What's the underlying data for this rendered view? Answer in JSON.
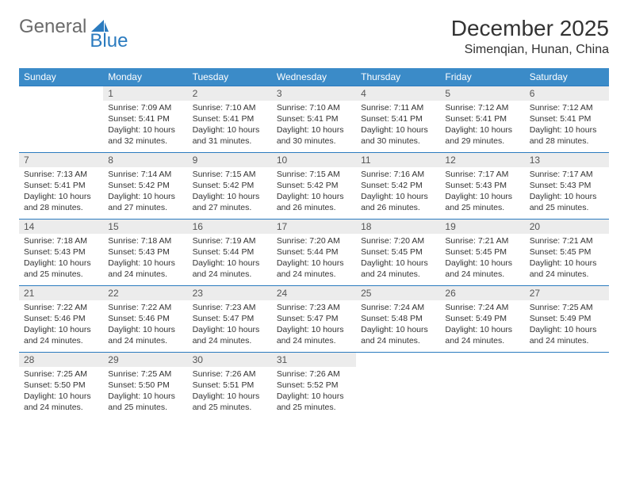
{
  "logo": {
    "word1": "General",
    "word2": "Blue",
    "word1_color": "#6b6b6b",
    "word2_color": "#2b7bbf",
    "icon_color": "#2b7bbf"
  },
  "title": "December 2025",
  "location": "Simenqian, Hunan, China",
  "header_bg": "#3b8bc8",
  "daynum_bg": "#ececec",
  "rule_color": "#2b7bbf",
  "day_headers": [
    "Sunday",
    "Monday",
    "Tuesday",
    "Wednesday",
    "Thursday",
    "Friday",
    "Saturday"
  ],
  "weeks": [
    [
      null,
      {
        "n": "1",
        "sr": "7:09 AM",
        "ss": "5:41 PM",
        "dl": "10 hours and 32 minutes."
      },
      {
        "n": "2",
        "sr": "7:10 AM",
        "ss": "5:41 PM",
        "dl": "10 hours and 31 minutes."
      },
      {
        "n": "3",
        "sr": "7:10 AM",
        "ss": "5:41 PM",
        "dl": "10 hours and 30 minutes."
      },
      {
        "n": "4",
        "sr": "7:11 AM",
        "ss": "5:41 PM",
        "dl": "10 hours and 30 minutes."
      },
      {
        "n": "5",
        "sr": "7:12 AM",
        "ss": "5:41 PM",
        "dl": "10 hours and 29 minutes."
      },
      {
        "n": "6",
        "sr": "7:12 AM",
        "ss": "5:41 PM",
        "dl": "10 hours and 28 minutes."
      }
    ],
    [
      {
        "n": "7",
        "sr": "7:13 AM",
        "ss": "5:41 PM",
        "dl": "10 hours and 28 minutes."
      },
      {
        "n": "8",
        "sr": "7:14 AM",
        "ss": "5:42 PM",
        "dl": "10 hours and 27 minutes."
      },
      {
        "n": "9",
        "sr": "7:15 AM",
        "ss": "5:42 PM",
        "dl": "10 hours and 27 minutes."
      },
      {
        "n": "10",
        "sr": "7:15 AM",
        "ss": "5:42 PM",
        "dl": "10 hours and 26 minutes."
      },
      {
        "n": "11",
        "sr": "7:16 AM",
        "ss": "5:42 PM",
        "dl": "10 hours and 26 minutes."
      },
      {
        "n": "12",
        "sr": "7:17 AM",
        "ss": "5:43 PM",
        "dl": "10 hours and 25 minutes."
      },
      {
        "n": "13",
        "sr": "7:17 AM",
        "ss": "5:43 PM",
        "dl": "10 hours and 25 minutes."
      }
    ],
    [
      {
        "n": "14",
        "sr": "7:18 AM",
        "ss": "5:43 PM",
        "dl": "10 hours and 25 minutes."
      },
      {
        "n": "15",
        "sr": "7:18 AM",
        "ss": "5:43 PM",
        "dl": "10 hours and 24 minutes."
      },
      {
        "n": "16",
        "sr": "7:19 AM",
        "ss": "5:44 PM",
        "dl": "10 hours and 24 minutes."
      },
      {
        "n": "17",
        "sr": "7:20 AM",
        "ss": "5:44 PM",
        "dl": "10 hours and 24 minutes."
      },
      {
        "n": "18",
        "sr": "7:20 AM",
        "ss": "5:45 PM",
        "dl": "10 hours and 24 minutes."
      },
      {
        "n": "19",
        "sr": "7:21 AM",
        "ss": "5:45 PM",
        "dl": "10 hours and 24 minutes."
      },
      {
        "n": "20",
        "sr": "7:21 AM",
        "ss": "5:45 PM",
        "dl": "10 hours and 24 minutes."
      }
    ],
    [
      {
        "n": "21",
        "sr": "7:22 AM",
        "ss": "5:46 PM",
        "dl": "10 hours and 24 minutes."
      },
      {
        "n": "22",
        "sr": "7:22 AM",
        "ss": "5:46 PM",
        "dl": "10 hours and 24 minutes."
      },
      {
        "n": "23",
        "sr": "7:23 AM",
        "ss": "5:47 PM",
        "dl": "10 hours and 24 minutes."
      },
      {
        "n": "24",
        "sr": "7:23 AM",
        "ss": "5:47 PM",
        "dl": "10 hours and 24 minutes."
      },
      {
        "n": "25",
        "sr": "7:24 AM",
        "ss": "5:48 PM",
        "dl": "10 hours and 24 minutes."
      },
      {
        "n": "26",
        "sr": "7:24 AM",
        "ss": "5:49 PM",
        "dl": "10 hours and 24 minutes."
      },
      {
        "n": "27",
        "sr": "7:25 AM",
        "ss": "5:49 PM",
        "dl": "10 hours and 24 minutes."
      }
    ],
    [
      {
        "n": "28",
        "sr": "7:25 AM",
        "ss": "5:50 PM",
        "dl": "10 hours and 24 minutes."
      },
      {
        "n": "29",
        "sr": "7:25 AM",
        "ss": "5:50 PM",
        "dl": "10 hours and 25 minutes."
      },
      {
        "n": "30",
        "sr": "7:26 AM",
        "ss": "5:51 PM",
        "dl": "10 hours and 25 minutes."
      },
      {
        "n": "31",
        "sr": "7:26 AM",
        "ss": "5:52 PM",
        "dl": "10 hours and 25 minutes."
      },
      null,
      null,
      null
    ]
  ],
  "labels": {
    "sunrise": "Sunrise:",
    "sunset": "Sunset:",
    "daylight": "Daylight:"
  }
}
